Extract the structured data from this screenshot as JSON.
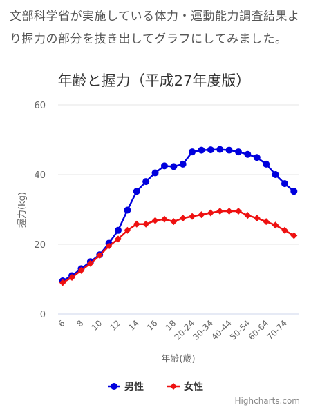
{
  "intro_text": "文部科学省が実施している体力・運動能力調査結果より握力の部分を抜き出してグラフにしてみました。",
  "credit": "Highcharts.com",
  "colors": {
    "male": "#0000dd",
    "female": "#ee1111",
    "grid": "#e6e6e6",
    "text": "#666666"
  },
  "chart_data": {
    "type": "line",
    "title": "年齢と握力（平成27年度版）",
    "xlabel": "年齢(歳)",
    "ylabel": "握力(kg)",
    "ylim": [
      0,
      60
    ],
    "yticks": [
      0,
      20,
      40,
      60
    ],
    "grid": true,
    "legend_position": "bottom-center",
    "categories": [
      "6",
      "7",
      "8",
      "9",
      "10",
      "11",
      "12",
      "13",
      "14",
      "15",
      "16",
      "17",
      "18",
      "19",
      "20-24",
      "25-29",
      "30-34",
      "35-39",
      "40-44",
      "45-49",
      "50-54",
      "55-59",
      "60-64",
      "65-69",
      "70-74",
      "75-79"
    ],
    "x_tick_labels": [
      "6",
      "8",
      "10",
      "12",
      "14",
      "16",
      "18",
      "20-24",
      "30-34",
      "40-44",
      "50-54",
      "60-64",
      "70-74"
    ],
    "series": [
      {
        "name": "男性",
        "marker": "circle",
        "color": "#0000dd",
        "values": [
          9.5,
          11.0,
          13.0,
          15.0,
          17.0,
          20.3,
          24.0,
          29.8,
          35.2,
          38.0,
          40.5,
          42.5,
          42.3,
          43.0,
          46.5,
          47.0,
          47.1,
          47.2,
          47.0,
          46.5,
          45.8,
          44.9,
          43.0,
          40.0,
          37.4,
          35.2
        ]
      },
      {
        "name": "女性",
        "marker": "diamond",
        "color": "#ee1111",
        "values": [
          9.0,
          10.5,
          12.5,
          14.5,
          16.8,
          19.5,
          21.5,
          24.0,
          25.8,
          25.8,
          26.8,
          27.2,
          26.5,
          27.5,
          28.0,
          28.5,
          29.0,
          29.5,
          29.5,
          29.5,
          28.3,
          27.5,
          26.5,
          25.5,
          24.0,
          22.5
        ]
      }
    ]
  }
}
